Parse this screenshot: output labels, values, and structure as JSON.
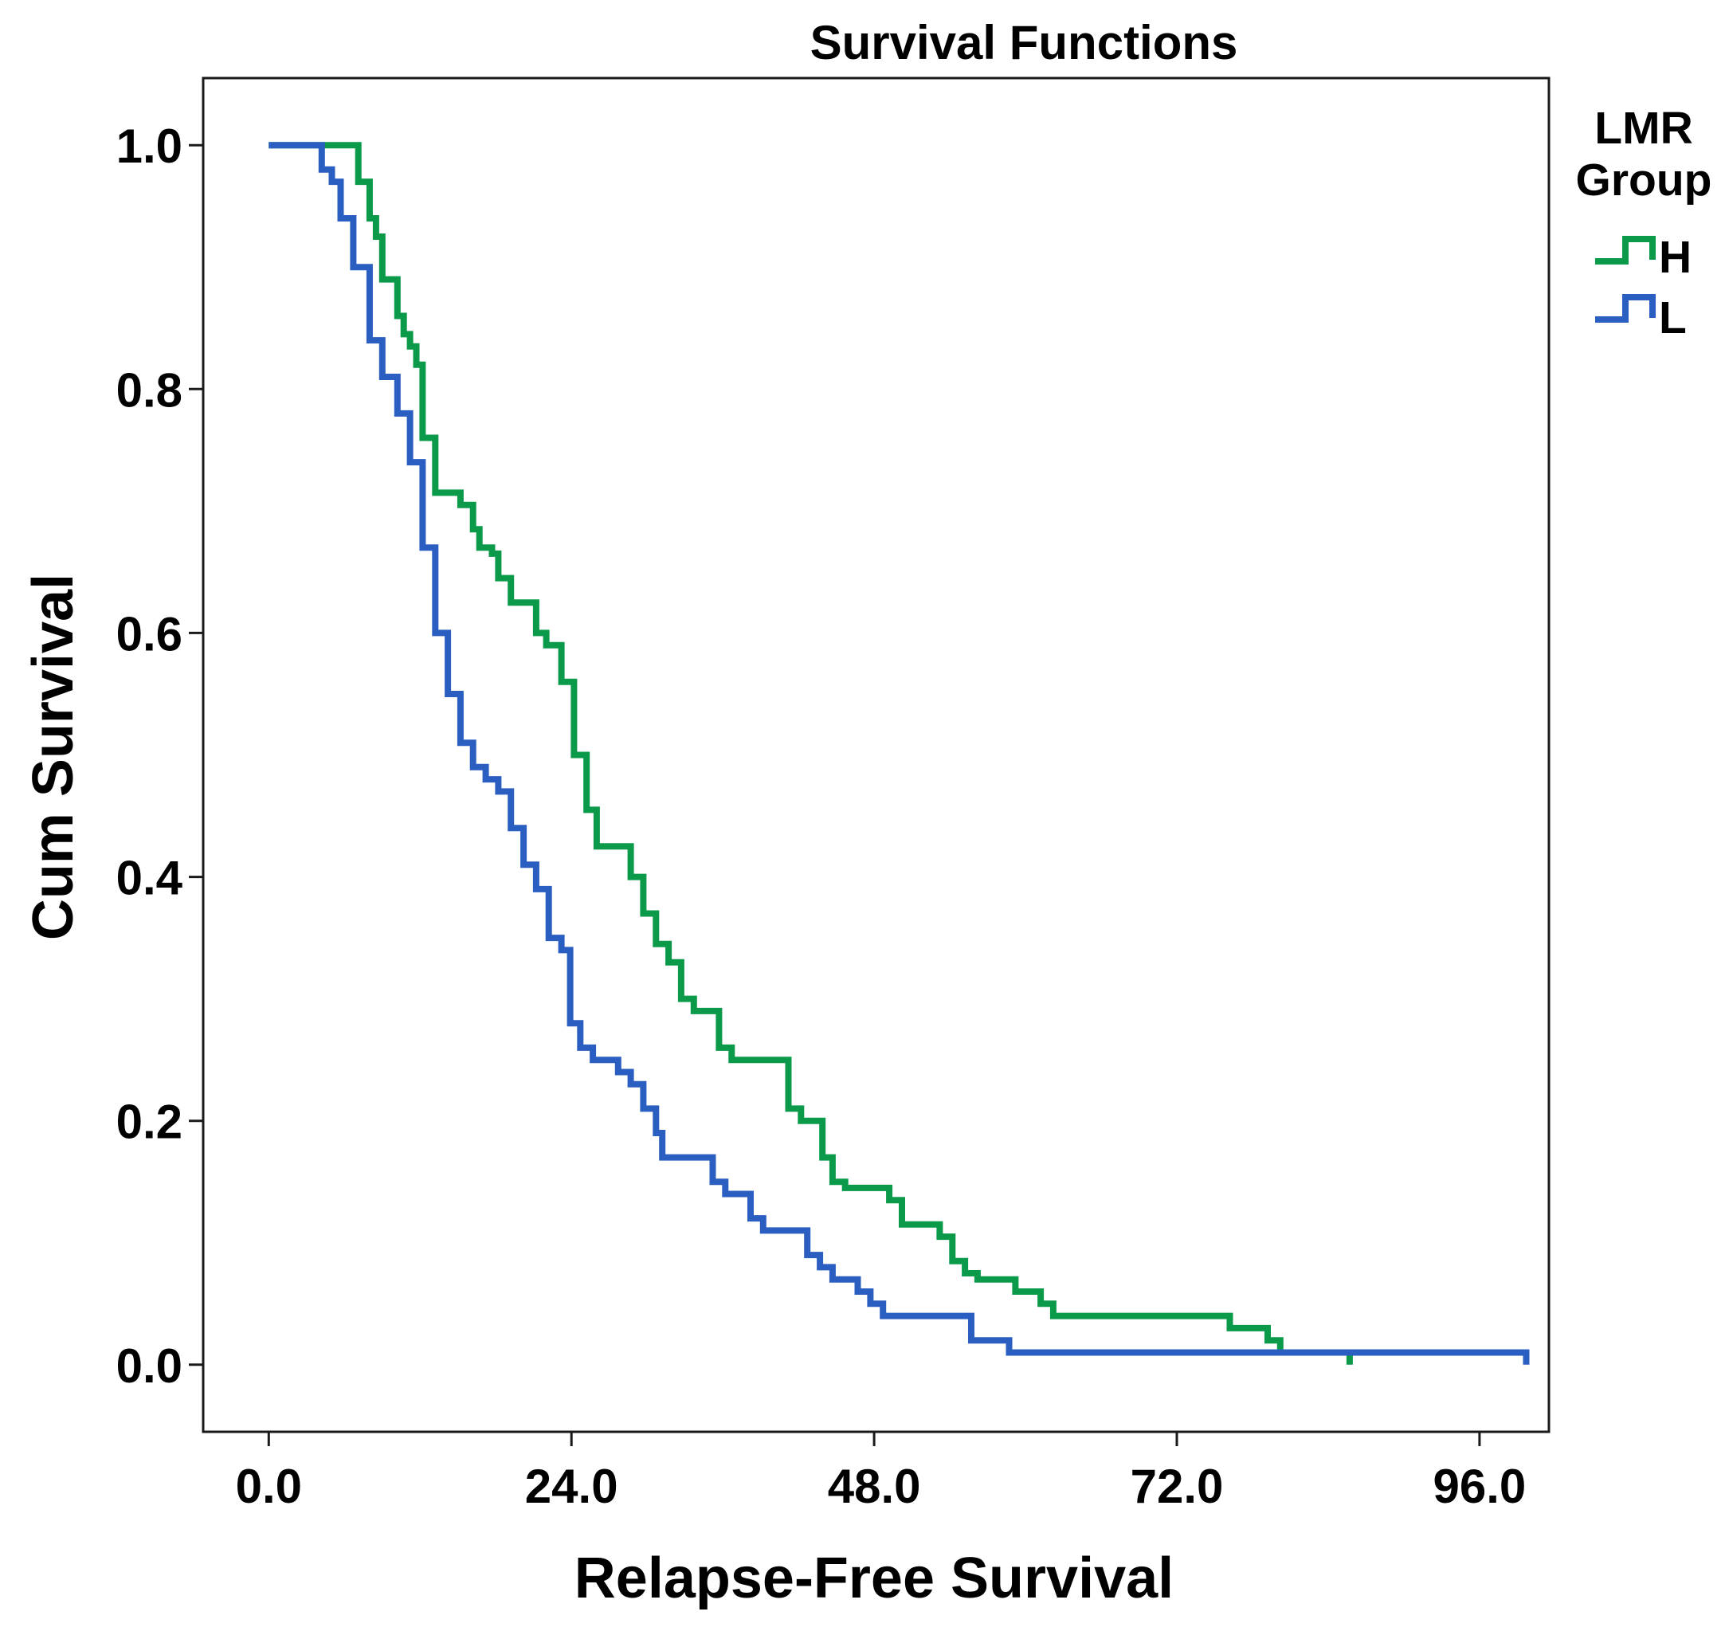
{
  "chart_data": {
    "type": "line",
    "step": true,
    "title": "Survival Functions",
    "xlabel": "Relapse-Free Survival",
    "ylabel": "Cum Survival",
    "xlim": [
      -5.2,
      101.5
    ],
    "ylim": [
      -0.055,
      1.055
    ],
    "x_ticks": [
      0,
      24,
      48,
      72,
      96
    ],
    "x_tick_labels": [
      "0.0",
      "24.0",
      "48.0",
      "72.0",
      "96.0"
    ],
    "y_ticks": [
      0,
      0.2,
      0.4,
      0.6,
      0.8,
      1.0
    ],
    "y_tick_labels": [
      "0.0",
      "0.2",
      "0.4",
      "0.6",
      "0.8",
      "1.0"
    ],
    "legend": {
      "title_line1": "LMR",
      "title_line2": "Group",
      "position": "right"
    },
    "series": [
      {
        "name": "H",
        "color": "#0a9a4a",
        "points": [
          [
            0,
            1.0
          ],
          [
            7.1,
            1.0
          ],
          [
            7.1,
            0.97
          ],
          [
            8.0,
            0.97
          ],
          [
            8.0,
            0.94
          ],
          [
            8.5,
            0.94
          ],
          [
            8.5,
            0.925
          ],
          [
            9.0,
            0.925
          ],
          [
            9.0,
            0.89
          ],
          [
            10.2,
            0.89
          ],
          [
            10.2,
            0.86
          ],
          [
            10.7,
            0.86
          ],
          [
            10.7,
            0.845
          ],
          [
            11.2,
            0.845
          ],
          [
            11.2,
            0.835
          ],
          [
            11.7,
            0.835
          ],
          [
            11.7,
            0.82
          ],
          [
            12.2,
            0.82
          ],
          [
            12.2,
            0.76
          ],
          [
            13.2,
            0.76
          ],
          [
            13.2,
            0.715
          ],
          [
            15.2,
            0.715
          ],
          [
            15.2,
            0.705
          ],
          [
            16.2,
            0.705
          ],
          [
            16.2,
            0.685
          ],
          [
            16.7,
            0.685
          ],
          [
            16.7,
            0.67
          ],
          [
            17.7,
            0.67
          ],
          [
            17.7,
            0.665
          ],
          [
            18.2,
            0.665
          ],
          [
            18.2,
            0.645
          ],
          [
            19.2,
            0.645
          ],
          [
            19.2,
            0.625
          ],
          [
            21.2,
            0.625
          ],
          [
            21.2,
            0.6
          ],
          [
            22.0,
            0.6
          ],
          [
            22.0,
            0.59
          ],
          [
            23.2,
            0.59
          ],
          [
            23.2,
            0.56
          ],
          [
            24.2,
            0.56
          ],
          [
            24.2,
            0.5
          ],
          [
            25.2,
            0.5
          ],
          [
            25.2,
            0.455
          ],
          [
            26.0,
            0.455
          ],
          [
            26.0,
            0.425
          ],
          [
            28.7,
            0.425
          ],
          [
            28.7,
            0.4
          ],
          [
            29.7,
            0.4
          ],
          [
            29.7,
            0.37
          ],
          [
            30.7,
            0.37
          ],
          [
            30.7,
            0.345
          ],
          [
            31.7,
            0.345
          ],
          [
            31.7,
            0.33
          ],
          [
            32.7,
            0.33
          ],
          [
            32.7,
            0.3
          ],
          [
            33.7,
            0.3
          ],
          [
            33.7,
            0.29
          ],
          [
            35.7,
            0.29
          ],
          [
            35.7,
            0.26
          ],
          [
            36.7,
            0.26
          ],
          [
            36.7,
            0.25
          ],
          [
            41.2,
            0.25
          ],
          [
            41.2,
            0.21
          ],
          [
            42.2,
            0.21
          ],
          [
            42.2,
            0.2
          ],
          [
            43.9,
            0.2
          ],
          [
            43.9,
            0.17
          ],
          [
            44.7,
            0.17
          ],
          [
            44.7,
            0.15
          ],
          [
            45.7,
            0.15
          ],
          [
            45.7,
            0.145
          ],
          [
            49.2,
            0.145
          ],
          [
            49.2,
            0.135
          ],
          [
            50.2,
            0.135
          ],
          [
            50.2,
            0.115
          ],
          [
            53.2,
            0.115
          ],
          [
            53.2,
            0.105
          ],
          [
            54.2,
            0.105
          ],
          [
            54.2,
            0.085
          ],
          [
            55.2,
            0.085
          ],
          [
            55.2,
            0.075
          ],
          [
            56.2,
            0.075
          ],
          [
            56.2,
            0.07
          ],
          [
            59.2,
            0.07
          ],
          [
            59.2,
            0.06
          ],
          [
            61.2,
            0.06
          ],
          [
            61.2,
            0.05
          ],
          [
            62.2,
            0.05
          ],
          [
            62.2,
            0.04
          ],
          [
            76.2,
            0.04
          ],
          [
            76.2,
            0.03
          ],
          [
            79.2,
            0.03
          ],
          [
            79.2,
            0.02
          ],
          [
            80.2,
            0.02
          ],
          [
            80.2,
            0.01
          ],
          [
            85.7,
            0.01
          ],
          [
            85.7,
            0.0
          ]
        ]
      },
      {
        "name": "L",
        "color": "#2b5ec1",
        "points": [
          [
            0,
            1.0
          ],
          [
            4.2,
            1.0
          ],
          [
            4.2,
            0.98
          ],
          [
            5.0,
            0.98
          ],
          [
            5.0,
            0.97
          ],
          [
            5.7,
            0.97
          ],
          [
            5.7,
            0.94
          ],
          [
            6.7,
            0.94
          ],
          [
            6.7,
            0.9
          ],
          [
            8.0,
            0.9
          ],
          [
            8.0,
            0.84
          ],
          [
            9.0,
            0.84
          ],
          [
            9.0,
            0.81
          ],
          [
            10.2,
            0.81
          ],
          [
            10.2,
            0.78
          ],
          [
            11.2,
            0.78
          ],
          [
            11.2,
            0.74
          ],
          [
            12.2,
            0.74
          ],
          [
            12.2,
            0.67
          ],
          [
            13.2,
            0.67
          ],
          [
            13.2,
            0.6
          ],
          [
            14.2,
            0.6
          ],
          [
            14.2,
            0.55
          ],
          [
            15.2,
            0.55
          ],
          [
            15.2,
            0.51
          ],
          [
            16.2,
            0.51
          ],
          [
            16.2,
            0.49
          ],
          [
            17.2,
            0.49
          ],
          [
            17.2,
            0.48
          ],
          [
            18.2,
            0.48
          ],
          [
            18.2,
            0.47
          ],
          [
            19.2,
            0.47
          ],
          [
            19.2,
            0.44
          ],
          [
            20.2,
            0.44
          ],
          [
            20.2,
            0.41
          ],
          [
            21.2,
            0.41
          ],
          [
            21.2,
            0.39
          ],
          [
            22.2,
            0.39
          ],
          [
            22.2,
            0.35
          ],
          [
            23.2,
            0.35
          ],
          [
            23.2,
            0.34
          ],
          [
            23.9,
            0.34
          ],
          [
            23.9,
            0.28
          ],
          [
            24.7,
            0.28
          ],
          [
            24.7,
            0.26
          ],
          [
            25.7,
            0.26
          ],
          [
            25.7,
            0.25
          ],
          [
            27.7,
            0.25
          ],
          [
            27.7,
            0.24
          ],
          [
            28.7,
            0.24
          ],
          [
            28.7,
            0.23
          ],
          [
            29.7,
            0.23
          ],
          [
            29.7,
            0.21
          ],
          [
            30.7,
            0.21
          ],
          [
            30.7,
            0.19
          ],
          [
            31.2,
            0.19
          ],
          [
            31.2,
            0.17
          ],
          [
            35.2,
            0.17
          ],
          [
            35.2,
            0.15
          ],
          [
            36.2,
            0.15
          ],
          [
            36.2,
            0.14
          ],
          [
            38.2,
            0.14
          ],
          [
            38.2,
            0.12
          ],
          [
            39.2,
            0.12
          ],
          [
            39.2,
            0.11
          ],
          [
            42.7,
            0.11
          ],
          [
            42.7,
            0.09
          ],
          [
            43.7,
            0.09
          ],
          [
            43.7,
            0.08
          ],
          [
            44.7,
            0.08
          ],
          [
            44.7,
            0.07
          ],
          [
            46.7,
            0.07
          ],
          [
            46.7,
            0.06
          ],
          [
            47.7,
            0.06
          ],
          [
            47.7,
            0.05
          ],
          [
            48.7,
            0.05
          ],
          [
            48.7,
            0.04
          ],
          [
            55.7,
            0.04
          ],
          [
            55.7,
            0.02
          ],
          [
            58.7,
            0.02
          ],
          [
            58.7,
            0.01
          ],
          [
            99.7,
            0.01
          ],
          [
            99.7,
            0.0
          ]
        ]
      }
    ]
  }
}
